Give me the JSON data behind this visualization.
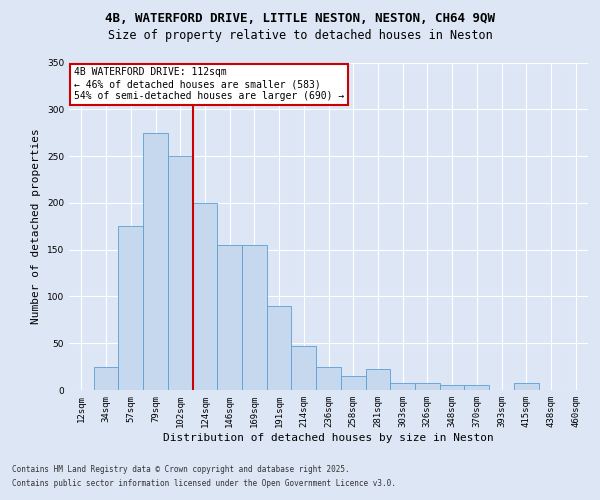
{
  "title_line1": "4B, WATERFORD DRIVE, LITTLE NESTON, NESTON, CH64 9QW",
  "title_line2": "Size of property relative to detached houses in Neston",
  "xlabel": "Distribution of detached houses by size in Neston",
  "ylabel": "Number of detached properties",
  "categories": [
    "12sqm",
    "34sqm",
    "57sqm",
    "79sqm",
    "102sqm",
    "124sqm",
    "146sqm",
    "169sqm",
    "191sqm",
    "214sqm",
    "236sqm",
    "258sqm",
    "281sqm",
    "303sqm",
    "326sqm",
    "348sqm",
    "370sqm",
    "393sqm",
    "415sqm",
    "438sqm",
    "460sqm"
  ],
  "values": [
    0,
    25,
    175,
    275,
    250,
    200,
    155,
    155,
    90,
    47,
    25,
    15,
    22,
    8,
    8,
    5,
    5,
    0,
    7,
    0,
    0
  ],
  "bar_color": "#c5d8ed",
  "bar_edge_color": "#5a9fd4",
  "vline_x": 4.5,
  "vline_color": "#cc0000",
  "annotation_text": "4B WATERFORD DRIVE: 112sqm\n← 46% of detached houses are smaller (583)\n54% of semi-detached houses are larger (690) →",
  "annotation_box_color": "#ffffff",
  "annotation_box_edge": "#cc0000",
  "ylim": [
    0,
    350
  ],
  "yticks": [
    0,
    50,
    100,
    150,
    200,
    250,
    300,
    350
  ],
  "background_color": "#dce6f5",
  "plot_background": "#dce6f5",
  "grid_color": "#ffffff",
  "footer_line1": "Contains HM Land Registry data © Crown copyright and database right 2025.",
  "footer_line2": "Contains public sector information licensed under the Open Government Licence v3.0.",
  "title_fontsize": 9,
  "subtitle_fontsize": 8.5,
  "tick_fontsize": 6.5,
  "label_fontsize": 8,
  "annotation_fontsize": 7,
  "footer_fontsize": 5.5
}
